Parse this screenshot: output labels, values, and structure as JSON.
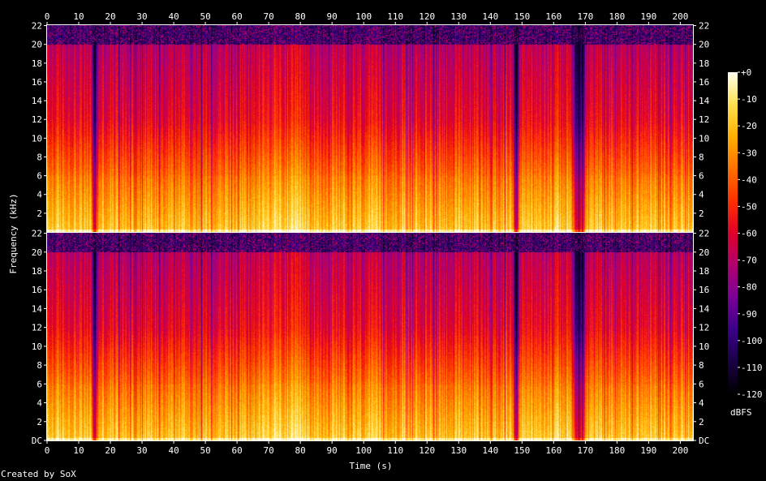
{
  "chart_data": {
    "type": "heatmap",
    "subtype": "spectrogram",
    "channels": 2,
    "xlabel": "Time (s)",
    "ylabel": "Frequency (kHz)",
    "xlim": [
      0,
      204
    ],
    "ylim": [
      0,
      22.05
    ],
    "x_ticks": [
      0,
      10,
      20,
      30,
      40,
      50,
      60,
      70,
      80,
      90,
      100,
      110,
      120,
      130,
      140,
      150,
      160,
      170,
      180,
      190,
      200
    ],
    "y_ticks": [
      {
        "value": 0,
        "label": "DC"
      },
      {
        "value": 2,
        "label": "2"
      },
      {
        "value": 4,
        "label": "4"
      },
      {
        "value": 6,
        "label": "6"
      },
      {
        "value": 8,
        "label": "8"
      },
      {
        "value": 10,
        "label": "10"
      },
      {
        "value": 12,
        "label": "12"
      },
      {
        "value": 14,
        "label": "14"
      },
      {
        "value": 16,
        "label": "16"
      },
      {
        "value": 18,
        "label": "18"
      },
      {
        "value": 20,
        "label": "20"
      },
      {
        "value": 22,
        "label": "22"
      }
    ],
    "colorbar": {
      "label": "dBFS",
      "range": [
        -120,
        0
      ],
      "ticks": [
        {
          "value": 0,
          "label": "+0"
        },
        {
          "value": -10,
          "label": "-10"
        },
        {
          "value": -20,
          "label": "-20"
        },
        {
          "value": -30,
          "label": "-30"
        },
        {
          "value": -40,
          "label": "-40"
        },
        {
          "value": -50,
          "label": "-50"
        },
        {
          "value": -60,
          "label": "-60"
        },
        {
          "value": -70,
          "label": "-70"
        },
        {
          "value": -80,
          "label": "-80"
        },
        {
          "value": -90,
          "label": "-90"
        },
        {
          "value": -100,
          "label": "-100"
        },
        {
          "value": -110,
          "label": "-110"
        },
        {
          "value": -120,
          "label": "-120"
        }
      ],
      "colors": [
        "#000000",
        "#1a0045",
        "#3a0088",
        "#7a0098",
        "#b00070",
        "#e0002a",
        "#ff3000",
        "#ff7000",
        "#ffb000",
        "#ffe050",
        "#fffff0"
      ]
    },
    "cutoff_khz": 20,
    "quiet_sections_s": [
      15,
      148,
      167,
      168,
      169
    ],
    "grid": false
  },
  "credit": "Created by SoX"
}
